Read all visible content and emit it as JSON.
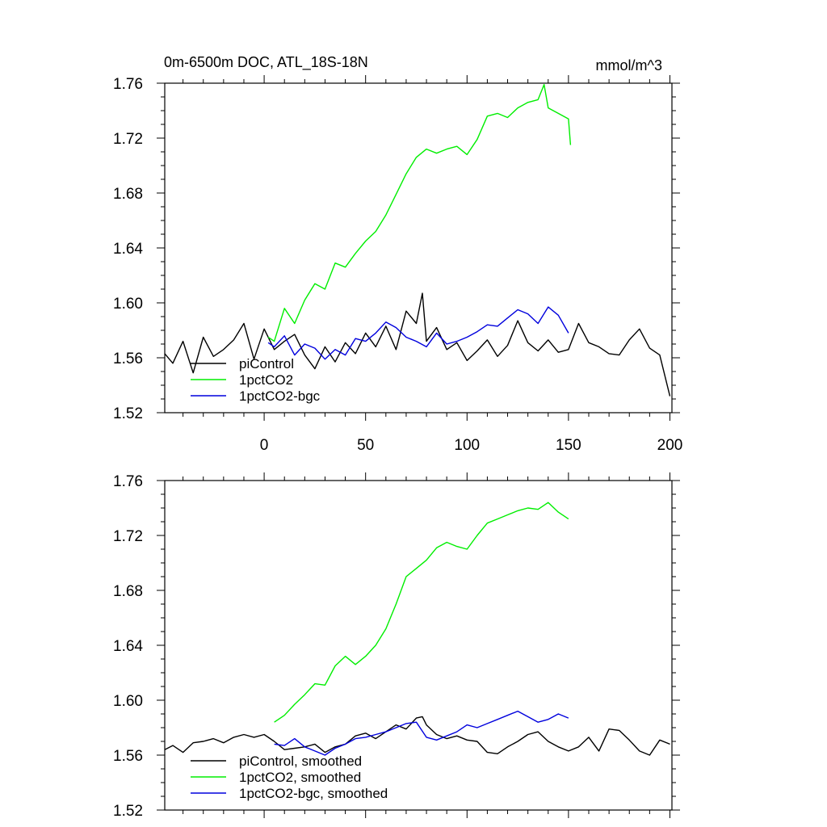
{
  "figure": {
    "title_left": "0m-6500m DOC, ATL_18S-18N",
    "title_right": "mmol/m^3"
  },
  "colors": {
    "piControl": "#000000",
    "1pctCO2": "#00ee00",
    "1pctCO2-bgc": "#0000dd"
  },
  "chart_data": [
    {
      "type": "line",
      "title": "0m-6500m DOC, ATL_18S-18N",
      "units": "mmol/m^3",
      "xlim": [
        -49,
        201
      ],
      "ylim": [
        1.52,
        1.76
      ],
      "x_ticks": [
        0,
        50,
        100,
        150,
        200
      ],
      "x_tick_labels": [
        "0",
        "50",
        "100",
        "150",
        "200"
      ],
      "y_ticks": [
        1.52,
        1.56,
        1.6,
        1.64,
        1.68,
        1.72,
        1.76
      ],
      "y_tick_labels": [
        "1.52",
        "1.56",
        "1.60",
        "1.64",
        "1.68",
        "1.72",
        "1.76"
      ],
      "grid": false,
      "legend_position": "bottom-left",
      "series": [
        {
          "name": "piControl",
          "color": "#000000",
          "x": [
            -49,
            -45,
            -40,
            -35,
            -30,
            -25,
            -20,
            -15,
            -10,
            -5,
            0,
            5,
            10,
            15,
            20,
            25,
            30,
            35,
            40,
            45,
            50,
            55,
            60,
            65,
            70,
            75,
            78,
            80,
            85,
            90,
            95,
            100,
            105,
            110,
            115,
            120,
            125,
            130,
            135,
            140,
            145,
            150,
            155,
            160,
            165,
            170,
            175,
            180,
            185,
            190,
            195,
            200
          ],
          "y": [
            1.563,
            1.556,
            1.572,
            1.549,
            1.575,
            1.561,
            1.566,
            1.573,
            1.585,
            1.559,
            1.581,
            1.566,
            1.572,
            1.577,
            1.562,
            1.552,
            1.568,
            1.557,
            1.571,
            1.563,
            1.578,
            1.568,
            1.583,
            1.566,
            1.594,
            1.585,
            1.607,
            1.572,
            1.582,
            1.566,
            1.571,
            1.558,
            1.565,
            1.573,
            1.561,
            1.569,
            1.587,
            1.571,
            1.565,
            1.573,
            1.564,
            1.566,
            1.585,
            1.571,
            1.568,
            1.563,
            1.562,
            1.573,
            1.581,
            1.567,
            1.562,
            1.532
          ]
        },
        {
          "name": "1pctCO2",
          "color": "#00ee00",
          "x": [
            2,
            5,
            10,
            15,
            20,
            25,
            30,
            35,
            40,
            45,
            50,
            55,
            60,
            65,
            70,
            75,
            80,
            85,
            90,
            95,
            100,
            105,
            110,
            115,
            120,
            125,
            130,
            135,
            138,
            140,
            145,
            150,
            151
          ],
          "y": [
            1.575,
            1.572,
            1.596,
            1.585,
            1.602,
            1.614,
            1.61,
            1.629,
            1.626,
            1.636,
            1.645,
            1.652,
            1.664,
            1.679,
            1.694,
            1.706,
            1.712,
            1.709,
            1.712,
            1.714,
            1.708,
            1.719,
            1.736,
            1.738,
            1.735,
            1.742,
            1.746,
            1.748,
            1.759,
            1.742,
            1.738,
            1.734,
            1.715
          ]
        },
        {
          "name": "1pctCO2-bgc",
          "color": "#0000dd",
          "x": [
            2,
            5,
            10,
            15,
            20,
            25,
            30,
            35,
            40,
            45,
            50,
            55,
            60,
            65,
            70,
            75,
            80,
            85,
            90,
            95,
            100,
            105,
            110,
            115,
            120,
            125,
            130,
            135,
            140,
            145,
            150
          ],
          "y": [
            1.571,
            1.568,
            1.576,
            1.562,
            1.57,
            1.567,
            1.559,
            1.566,
            1.562,
            1.574,
            1.572,
            1.578,
            1.586,
            1.582,
            1.575,
            1.572,
            1.568,
            1.578,
            1.57,
            1.572,
            1.575,
            1.579,
            1.584,
            1.583,
            1.589,
            1.595,
            1.592,
            1.585,
            1.597,
            1.591,
            1.578
          ]
        }
      ]
    },
    {
      "type": "line",
      "xlim": [
        -49,
        201
      ],
      "ylim": [
        1.52,
        1.76
      ],
      "x_ticks": [
        0,
        50,
        100,
        150,
        200
      ],
      "y_ticks": [
        1.52,
        1.56,
        1.6,
        1.64,
        1.68,
        1.72,
        1.76
      ],
      "y_tick_labels": [
        "1.52",
        "1.56",
        "1.60",
        "1.64",
        "1.68",
        "1.72",
        "1.76"
      ],
      "grid": false,
      "legend_position": "bottom-left",
      "series": [
        {
          "name": "piControl, smoothed",
          "color": "#000000",
          "x": [
            -49,
            -45,
            -40,
            -35,
            -30,
            -25,
            -20,
            -15,
            -10,
            -5,
            0,
            5,
            10,
            15,
            20,
            25,
            30,
            35,
            40,
            45,
            50,
            55,
            60,
            65,
            70,
            75,
            78,
            80,
            85,
            90,
            95,
            100,
            105,
            110,
            115,
            120,
            125,
            130,
            135,
            140,
            145,
            150,
            155,
            160,
            165,
            170,
            175,
            180,
            185,
            190,
            195,
            200
          ],
          "y": [
            1.564,
            1.567,
            1.562,
            1.569,
            1.57,
            1.572,
            1.569,
            1.573,
            1.575,
            1.573,
            1.575,
            1.57,
            1.564,
            1.565,
            1.566,
            1.568,
            1.562,
            1.566,
            1.568,
            1.574,
            1.576,
            1.572,
            1.577,
            1.582,
            1.579,
            1.587,
            1.588,
            1.582,
            1.575,
            1.572,
            1.574,
            1.571,
            1.57,
            1.562,
            1.561,
            1.566,
            1.57,
            1.575,
            1.577,
            1.57,
            1.566,
            1.563,
            1.566,
            1.573,
            1.563,
            1.579,
            1.578,
            1.571,
            1.563,
            1.56,
            1.571,
            1.568
          ]
        },
        {
          "name": "1pctCO2, smoothed",
          "color": "#00ee00",
          "x": [
            5,
            10,
            15,
            20,
            25,
            30,
            35,
            40,
            45,
            50,
            55,
            60,
            65,
            70,
            75,
            80,
            85,
            90,
            95,
            100,
            105,
            110,
            115,
            120,
            125,
            130,
            135,
            140,
            145,
            150
          ],
          "y": [
            1.584,
            1.589,
            1.597,
            1.604,
            1.612,
            1.611,
            1.625,
            1.632,
            1.626,
            1.632,
            1.64,
            1.652,
            1.67,
            1.69,
            1.696,
            1.702,
            1.711,
            1.715,
            1.712,
            1.71,
            1.72,
            1.729,
            1.732,
            1.735,
            1.738,
            1.74,
            1.739,
            1.744,
            1.737,
            1.732
          ]
        },
        {
          "name": "1pctCO2-bgc, smoothed",
          "color": "#0000dd",
          "x": [
            5,
            10,
            15,
            20,
            25,
            30,
            35,
            40,
            45,
            50,
            55,
            60,
            65,
            70,
            75,
            80,
            85,
            90,
            95,
            100,
            105,
            110,
            115,
            120,
            125,
            130,
            135,
            140,
            145,
            150
          ],
          "y": [
            1.568,
            1.567,
            1.572,
            1.566,
            1.563,
            1.56,
            1.565,
            1.568,
            1.572,
            1.573,
            1.575,
            1.577,
            1.58,
            1.583,
            1.584,
            1.573,
            1.571,
            1.574,
            1.577,
            1.582,
            1.58,
            1.583,
            1.586,
            1.589,
            1.592,
            1.588,
            1.584,
            1.586,
            1.59,
            1.587
          ]
        }
      ]
    }
  ]
}
